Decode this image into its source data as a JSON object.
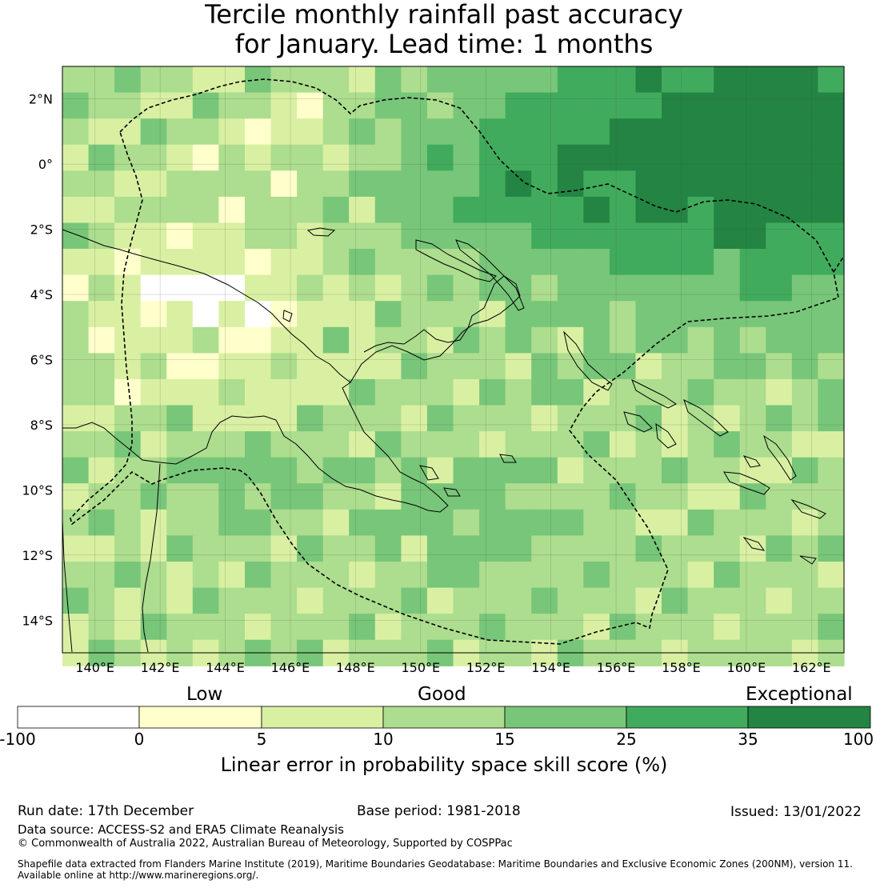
{
  "title": {
    "line1": "Tercile monthly rainfall past accuracy",
    "line2": "for January. Lead time: 1 months"
  },
  "map": {
    "region": "Papua New Guinea and Solomon Islands region",
    "lon_labels": [
      "140°E",
      "142°E",
      "144°E",
      "146°E",
      "148°E",
      "150°E",
      "152°E",
      "154°E",
      "156°E",
      "158°E",
      "160°E",
      "162°E"
    ],
    "lat_labels": [
      "2°N",
      "0°",
      "2°S",
      "4°S",
      "6°S",
      "8°S",
      "10°S",
      "12°S",
      "14°S"
    ],
    "extent": {
      "lon_min": 139.0,
      "lon_max": 163.0,
      "lat_min": -15.0,
      "lat_max": 3.0
    },
    "grid_resolution_deg": 0.8
  },
  "legend": {
    "categories": [
      "Low",
      "Good",
      "Exceptional"
    ],
    "tick_labels": [
      "-100",
      "0",
      "5",
      "10",
      "15",
      "25",
      "35",
      "100"
    ],
    "colors": [
      "#ffffff",
      "#ffffcc",
      "#d9f0a3",
      "#addd8e",
      "#78c679",
      "#41ab5d",
      "#238443"
    ],
    "title": "Linear error in probability space skill score (%)"
  },
  "footer": {
    "run_date": "Run date: 17th December",
    "base_period": "Base period: 1981-2018",
    "issued": "Issued: 13/01/2022",
    "data_source": "Data source: ACCESS-S2 and ERA5 Climate Reanalysis",
    "copyright": "© Commonwealth of Australia 2022, Australian Bureau of Meteorology, Supported by COSPPac",
    "shapefile_line1": "Shapefile data extracted from Flanders Marine Institute (2019), Maritime Boundaries Geodatabase: Maritime Boundaries and Exclusive Economic Zones (200NM), version 11.",
    "shapefile_line2": "Available online at http://www.marineregions.org/."
  }
}
